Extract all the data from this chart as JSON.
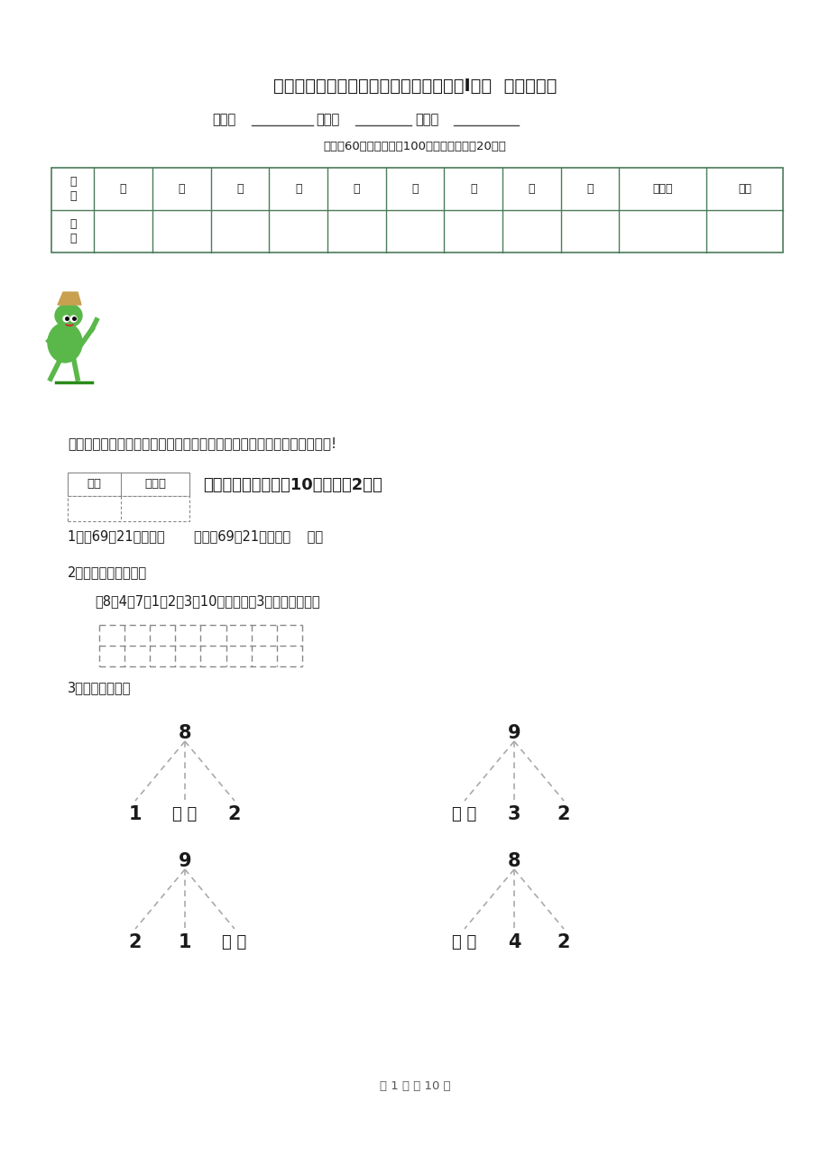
{
  "title": "宝鸡市一年级数学下学期期中考试试卷（I卷）  （含答案）",
  "subtitle_fields": [
    "班级：",
    "________",
    "   姓名：",
    "________",
    "  学号：",
    "________"
  ],
  "note": "（试卷60分钟，满分为100分，附加题单独20分）",
  "table_headers": [
    "题\n号",
    "一",
    "二",
    "三",
    "四",
    "五",
    "六",
    "七",
    "八",
    "九",
    "附加题",
    "总分"
  ],
  "intro_text": "同学们，一个学期过去了，你一定长进不少，让我们好好检验一下自己吧!",
  "score_box_labels": [
    "得分",
    "评卷人"
  ],
  "section_header": "一、我会填（本题共10分，每题2分）",
  "q1": "1、比69多21的数是（       ），比69少21的数是（    ）。",
  "q2_title": "2、想一想，填一填。",
  "q2_sub": "在8、4、7、1、2、3、10中，把大于3的数写在下面。",
  "q3_title": "3、树形填空题。",
  "footer": "第 1 页 共 10 页",
  "tree1_root": "8",
  "tree1_leaves": [
    "1",
    "（ ）",
    "2"
  ],
  "tree2_root": "9",
  "tree2_leaves": [
    "（ ）",
    "3",
    "2"
  ],
  "tree3_root": "9",
  "tree3_leaves": [
    "2",
    "1",
    "（ ）"
  ],
  "tree4_root": "8",
  "tree4_leaves": [
    "（ ）",
    "4",
    "2"
  ],
  "bg_color": "#ffffff",
  "text_color": "#1a1a1a",
  "table_border_color": "#4a7c5a",
  "line_color": "#888888"
}
